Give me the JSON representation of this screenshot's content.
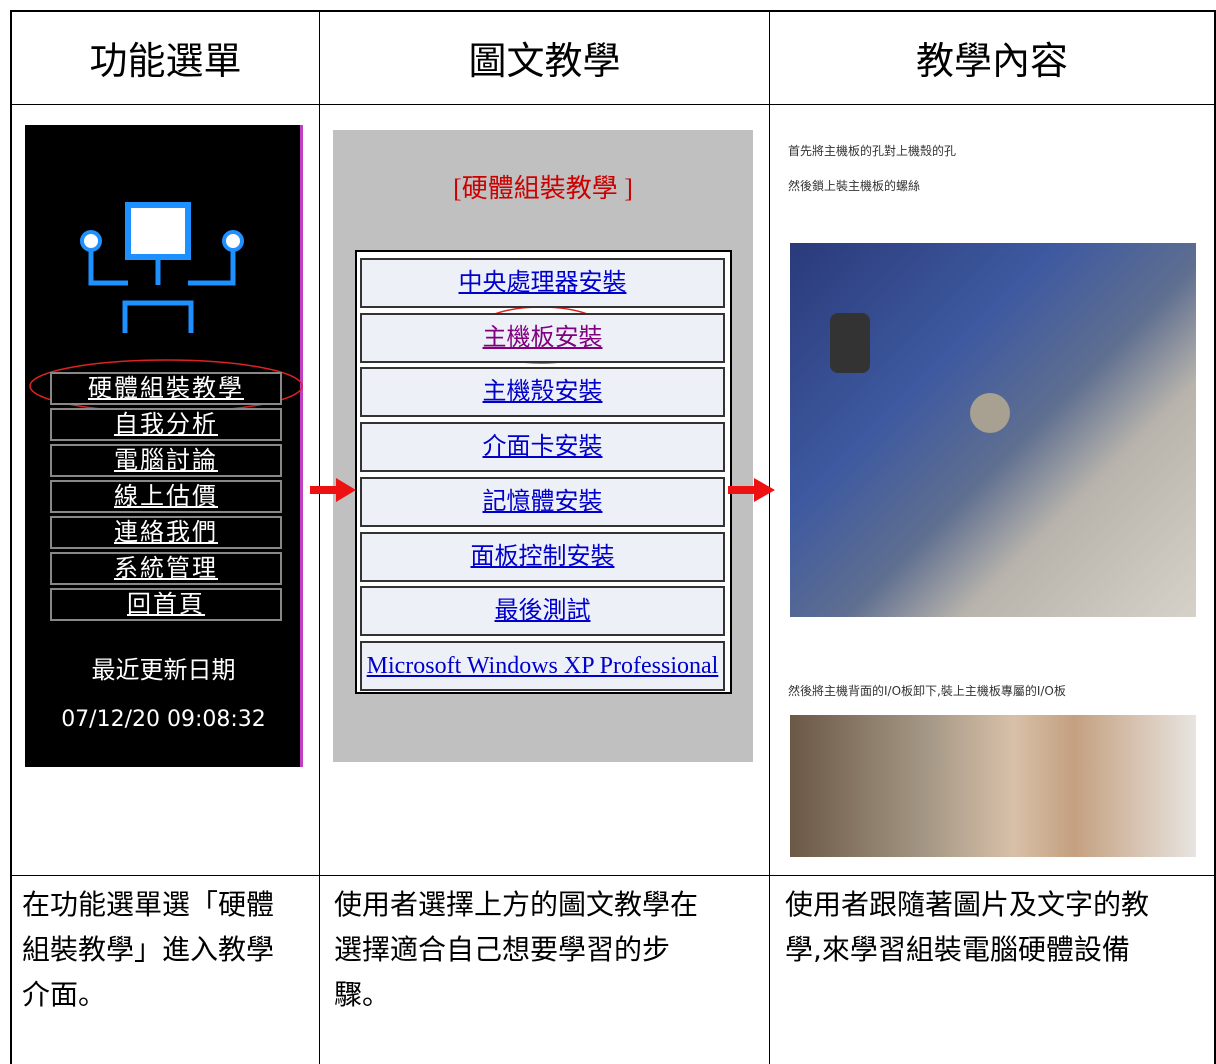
{
  "table": {
    "header": [
      "功能選單",
      "圖文教學",
      "教學內容"
    ],
    "menu_panel": {
      "items": [
        "硬體組裝教學",
        "自我分析",
        "電腦討論",
        "線上估價",
        "連絡我們",
        "系統管理",
        "回首頁"
      ],
      "update_label": "最近更新日期",
      "update_time": "07/12/20 09:08:32"
    },
    "tutorial_panel": {
      "title": "[硬體組裝教學 ]",
      "links": [
        "中央處理器安裝",
        "主機板安裝",
        "主機殼安裝",
        "介面卡安裝",
        "記憶體安裝",
        "面板控制安裝",
        "最後測試",
        "Microsoft Windows XP Professional"
      ]
    },
    "content_panel": {
      "lines": [
        "首先將主機板的孔對上機殼的孔",
        "然後鎖上裝主機板的螺絲",
        "然後將主機背面的I/O板卸下,裝上主機板專屬的I/O板"
      ]
    },
    "captions": [
      [
        "在功能選單選「硬體",
        "組裝教學」進入教學",
        "介面。"
      ],
      [
        "使用者選擇上方的圖文教學在",
        "選擇適合自己想要學習的步",
        "驟。"
      ],
      [
        "使用者跟隨著圖片及文字的教",
        "學,來學習組裝電腦硬體設備"
      ]
    ]
  }
}
